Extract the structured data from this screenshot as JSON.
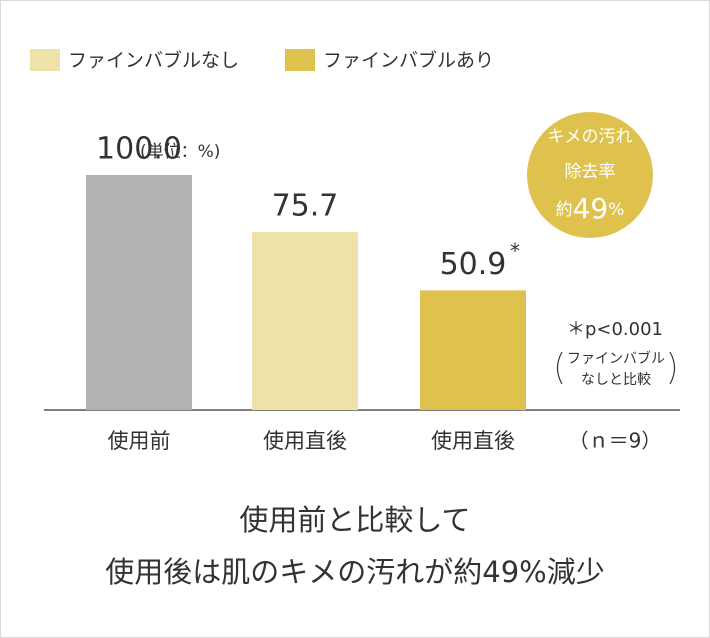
{
  "chart_data": {
    "type": "bar",
    "legend": [
      {
        "name": "ファインバブルなし",
        "color": "#efe2a8"
      },
      {
        "name": "ファインバブルあり",
        "color": "#dfc24e"
      }
    ],
    "categories": [
      "使用前",
      "使用直後",
      "使用直後"
    ],
    "values": [
      100,
      75.7,
      50.9
    ],
    "value_labels": [
      "100.0",
      "75.7",
      "50.9"
    ],
    "colors": [
      "#b3b1b1",
      "#efe2a8",
      "#dfc24e"
    ],
    "unit_label": "(単位：%)",
    "significance_mark": "*",
    "note": "＊p<0.001",
    "note_detail": [
      "ファインバブル",
      "なしと比較"
    ],
    "sample_size": "（ｎ＝9）",
    "badge": {
      "color": "#dfc24e",
      "lines": [
        "キメの汚れ",
        "除去率"
      ],
      "prefix": "約",
      "number": "49",
      "suffix": "%"
    },
    "caption": [
      "使用前と比較して",
      "使用後は肌のキメの汚れが約49%減少"
    ]
  }
}
